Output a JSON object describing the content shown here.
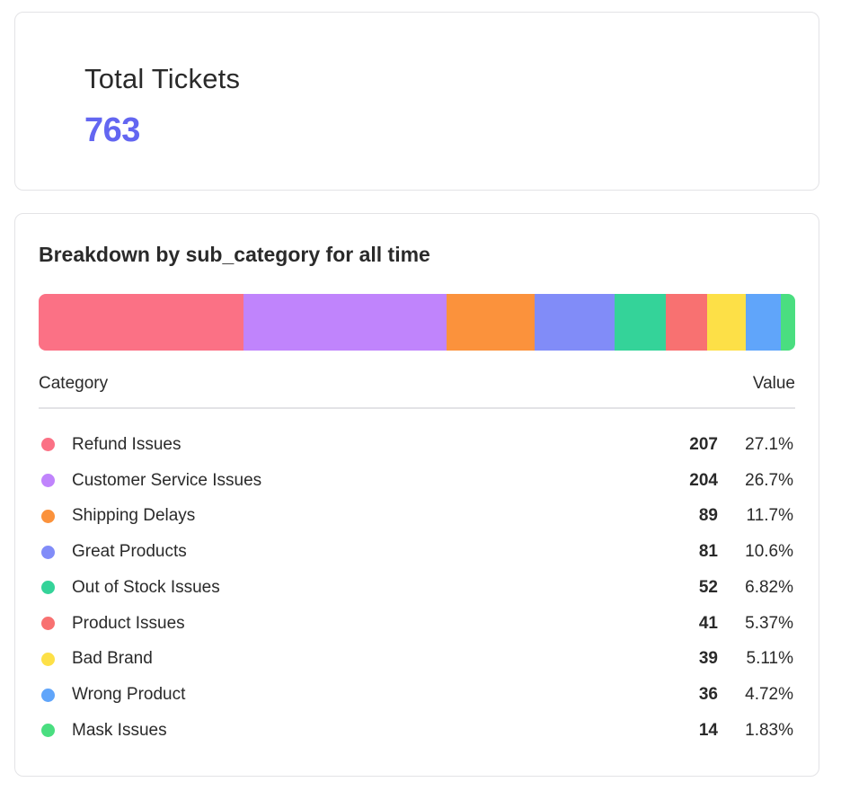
{
  "total": {
    "title": "Total Tickets",
    "value": "763",
    "value_color": "#6366f1"
  },
  "breakdown": {
    "title": "Breakdown by sub_category for all time",
    "header": {
      "category": "Category",
      "value": "Value"
    },
    "items": [
      {
        "label": "Refund Issues",
        "count": 207,
        "count_label": "207",
        "percent": "27.1%",
        "color": "#fb7185"
      },
      {
        "label": "Customer Service Issues",
        "count": 204,
        "count_label": "204",
        "percent": "26.7%",
        "color": "#c084fc"
      },
      {
        "label": "Shipping Delays",
        "count": 89,
        "count_label": "89",
        "percent": "11.7%",
        "color": "#fb923c"
      },
      {
        "label": "Great Products",
        "count": 81,
        "count_label": "81",
        "percent": "10.6%",
        "color": "#818cf8"
      },
      {
        "label": "Out of Stock Issues",
        "count": 52,
        "count_label": "52",
        "percent": "6.82%",
        "color": "#34d399"
      },
      {
        "label": "Product Issues",
        "count": 41,
        "count_label": "41",
        "percent": "5.37%",
        "color": "#f87171"
      },
      {
        "label": "Bad Brand",
        "count": 39,
        "count_label": "39",
        "percent": "5.11%",
        "color": "#fde047"
      },
      {
        "label": "Wrong Product",
        "count": 36,
        "count_label": "36",
        "percent": "4.72%",
        "color": "#60a5fa"
      },
      {
        "label": "Mask Issues",
        "count": 14,
        "count_label": "14",
        "percent": "1.83%",
        "color": "#4ade80"
      }
    ]
  }
}
